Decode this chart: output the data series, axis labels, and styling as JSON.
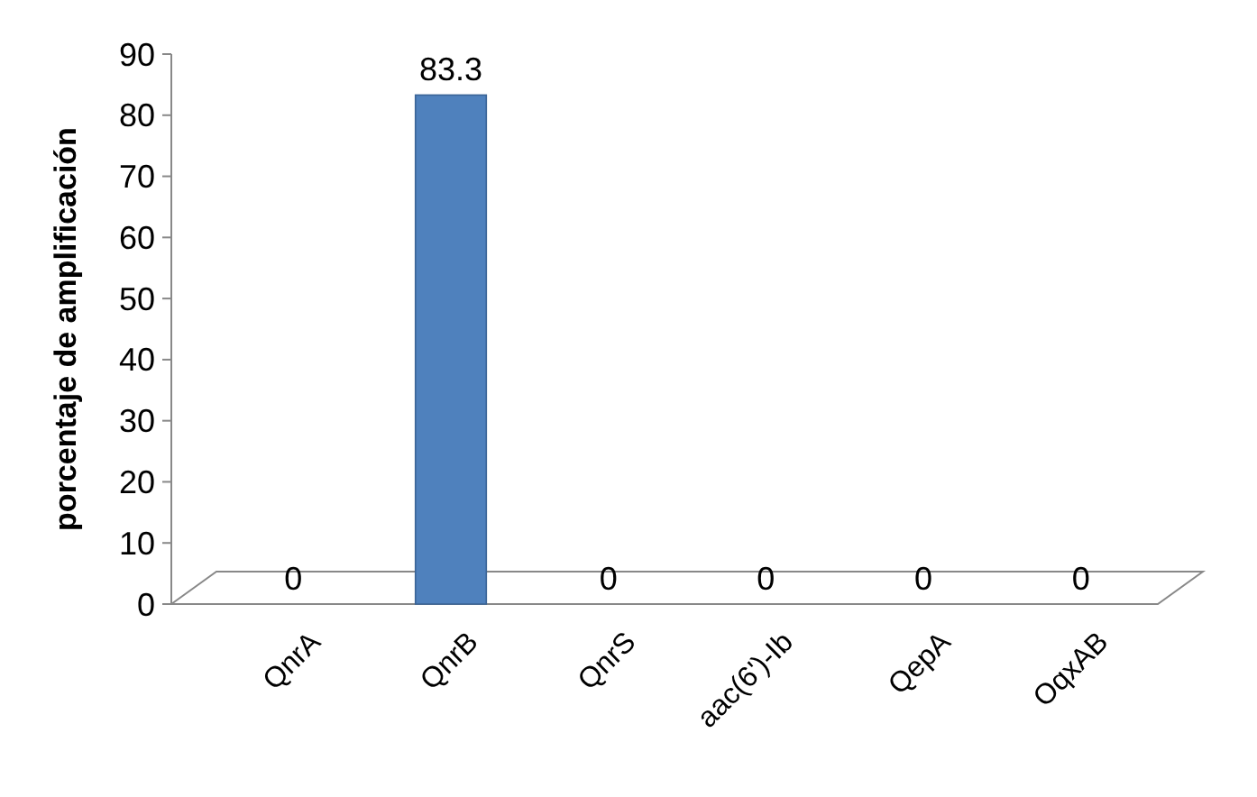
{
  "chart_data": {
    "type": "bar",
    "ylabel": "porcentaje de amplificación",
    "categories": [
      "QnrA",
      "QnrB",
      "QnrS",
      "aac(6')-Ib",
      "QepA",
      "OqxAB"
    ],
    "values": [
      0,
      83.3,
      0,
      0,
      0,
      0
    ],
    "color": "#4f81bd",
    "ylim": [
      0,
      90
    ],
    "yticks": [
      0,
      10,
      20,
      30,
      40,
      50,
      60,
      70,
      80,
      90
    ],
    "data_labels": true,
    "grid": false
  }
}
